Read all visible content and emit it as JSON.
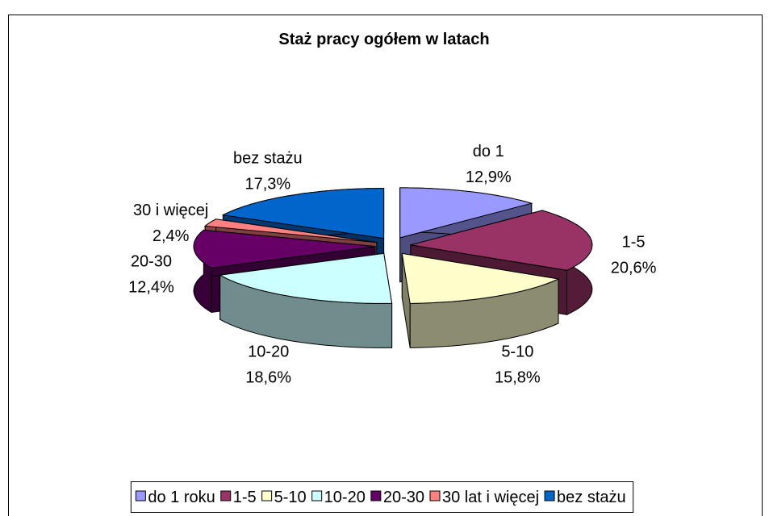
{
  "chart_data": {
    "type": "pie3d",
    "title": "Staż pracy ogółem w latach",
    "categories": [
      "do 1 roku",
      "1-5",
      "5-10",
      "10-20",
      "20-30",
      "30 lat i więcej",
      "bez stażu"
    ],
    "slice_labels": [
      "do 1",
      "1-5",
      "5-10",
      "10-20",
      "20-30",
      "30 i więcej",
      "bez stażu"
    ],
    "values": [
      12.9,
      20.6,
      15.8,
      18.6,
      12.4,
      2.4,
      17.3
    ],
    "value_labels": [
      "12,9%",
      "20,6%",
      "15,8%",
      "18,6%",
      "12,4%",
      "2,4%",
      "17,3%"
    ],
    "colors": [
      "#9999ff",
      "#993366",
      "#ffffcc",
      "#ccffff",
      "#660066",
      "#ff8080",
      "#0066cc"
    ],
    "legend": "bottom"
  }
}
